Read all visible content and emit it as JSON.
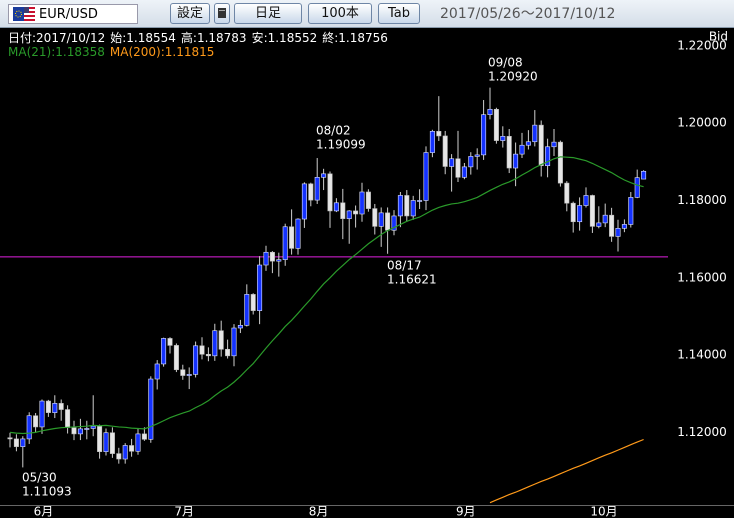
{
  "toolbar": {
    "pair": "EUR/USD",
    "buttons": [
      "設定",
      "日足",
      "100本",
      "Tab"
    ],
    "range": "2017/05/26～2017/10/12"
  },
  "chart_data": {
    "type": "candlestick",
    "info": [
      {
        "label": "日付:",
        "value": "2017/10/12"
      },
      {
        "label": "始:",
        "value": 1.18554
      },
      {
        "label": "高:",
        "value": 1.18783
      },
      {
        "label": "安:",
        "value": 1.18552
      },
      {
        "label": "終:",
        "value": 1.18756
      }
    ],
    "y_label": "Bid",
    "categories": [
      null,
      null,
      null,
      null,
      "6月",
      null,
      null,
      null,
      null,
      null,
      null,
      null,
      null,
      null,
      null,
      null,
      null,
      null,
      null,
      null,
      null,
      null,
      null,
      null,
      null,
      null,
      "7月",
      null,
      null,
      null,
      null,
      null,
      null,
      null,
      null,
      null,
      null,
      null,
      null,
      null,
      null,
      null,
      null,
      null,
      null,
      null,
      null,
      "8月",
      null,
      null,
      null,
      null,
      null,
      null,
      null,
      null,
      null,
      null,
      null,
      null,
      null,
      null,
      null,
      null,
      null,
      null,
      null,
      null,
      null,
      null,
      "9月",
      null,
      null,
      null,
      null,
      null,
      null,
      null,
      null,
      null,
      null,
      null,
      null,
      null,
      null,
      null,
      null,
      null,
      null,
      null,
      null,
      "10月",
      null,
      null,
      null,
      null,
      null,
      null,
      null,
      null
    ],
    "open": [
      1.1186,
      1.1183,
      1.1163,
      1.1183,
      1.1243,
      1.1214,
      1.1281,
      1.1251,
      1.1275,
      1.1259,
      1.1212,
      1.1196,
      1.1209,
      1.121,
      1.1216,
      1.115,
      1.1199,
      1.1145,
      1.1131,
      1.1166,
      1.1151,
      1.1196,
      1.1182,
      1.1338,
      1.1377,
      1.1443,
      1.1425,
      1.1362,
      1.1347,
      1.135,
      1.1424,
      1.1402,
      1.1398,
      1.1463,
      1.1415,
      1.1398,
      1.147,
      1.1477,
      1.1557,
      1.1515,
      1.1633,
      1.1666,
      1.1643,
      1.1647,
      1.1732,
      1.1676,
      1.1752,
      1.1843,
      1.1801,
      1.186,
      1.1869,
      1.1773,
      1.1794,
      1.1753,
      1.1773,
      1.1765,
      1.1822,
      1.1779,
      1.1733,
      1.1768,
      1.1723,
      1.176,
      1.1813,
      1.176,
      1.18,
      1.18,
      1.1924,
      1.1979,
      1.1967,
      1.1888,
      1.1908,
      1.186,
      1.1887,
      1.1914,
      1.1918,
      1.2022,
      1.2036,
      1.1955,
      1.1966,
      1.1884,
      1.192,
      1.1943,
      1.1952,
      1.1995,
      1.189,
      1.1939,
      1.1951,
      1.1845,
      1.1793,
      1.1745,
      1.1787,
      1.1813,
      1.1733,
      1.1742,
      1.1762,
      1.1707,
      1.1728,
      1.1738,
      1.1808,
      1.18554
    ],
    "high": [
      1.1199,
      1.1195,
      1.119,
      1.1252,
      1.125,
      1.1285,
      1.1284,
      1.1296,
      1.1285,
      1.127,
      1.123,
      1.1235,
      1.123,
      1.1296,
      1.122,
      1.121,
      1.1213,
      1.116,
      1.1172,
      1.1183,
      1.121,
      1.1213,
      1.1345,
      1.1387,
      1.1445,
      1.1446,
      1.143,
      1.1375,
      1.1368,
      1.1435,
      1.1446,
      1.142,
      1.1481,
      1.1489,
      1.144,
      1.148,
      1.1491,
      1.1583,
      1.156,
      1.1656,
      1.1683,
      1.1669,
      1.1665,
      1.174,
      1.1777,
      1.1754,
      1.1847,
      1.1846,
      1.19099,
      1.1882,
      1.1875,
      1.1806,
      1.183,
      1.1775,
      1.1787,
      1.1846,
      1.1829,
      1.1791,
      1.1782,
      1.1782,
      1.1775,
      1.1822,
      1.1827,
      1.1812,
      1.1829,
      1.194,
      1.1983,
      1.207,
      1.198,
      1.192,
      1.198,
      1.1897,
      1.1925,
      1.1935,
      1.206,
      1.2092,
      1.204,
      1.1992,
      1.1985,
      1.195,
      1.1975,
      1.1982,
      1.2034,
      1.2007,
      1.196,
      1.1985,
      1.1955,
      1.185,
      1.1797,
      1.1808,
      1.1834,
      1.1815,
      1.1785,
      1.1792,
      1.1781,
      1.175,
      1.1751,
      1.1822,
      1.188,
      1.18783
    ],
    "low": [
      1.1161,
      1.1151,
      1.11093,
      1.117,
      1.12,
      1.1196,
      1.124,
      1.1237,
      1.123,
      1.1197,
      1.118,
      1.118,
      1.1182,
      1.119,
      1.1132,
      1.114,
      1.1134,
      1.1119,
      1.1119,
      1.1137,
      1.1142,
      1.1178,
      1.1173,
      1.1311,
      1.137,
      1.1404,
      1.1356,
      1.1336,
      1.1312,
      1.1342,
      1.1389,
      1.1384,
      1.1385,
      1.1396,
      1.1391,
      1.1371,
      1.1457,
      1.1474,
      1.1505,
      1.148,
      1.1618,
      1.1612,
      1.1603,
      1.1631,
      1.166,
      1.166,
      1.1729,
      1.1785,
      1.1791,
      1.1827,
      1.1729,
      1.177,
      1.17,
      1.1688,
      1.173,
      1.1745,
      1.1771,
      1.1712,
      1.168,
      1.16621,
      1.171,
      1.1731,
      1.1745,
      1.175,
      1.1778,
      1.1775,
      1.1912,
      1.1954,
      1.1868,
      1.1823,
      1.1848,
      1.1855,
      1.1867,
      1.188,
      1.1905,
      1.201,
      1.1947,
      1.1937,
      1.1871,
      1.1837,
      1.191,
      1.1932,
      1.194,
      1.1862,
      1.186,
      1.1915,
      1.1836,
      1.1772,
      1.1717,
      1.1722,
      1.1782,
      1.1716,
      1.1728,
      1.1731,
      1.1693,
      1.1668,
      1.1718,
      1.173,
      1.1806,
      1.18552
    ],
    "close": [
      1.1183,
      1.1163,
      1.1183,
      1.1243,
      1.1214,
      1.1281,
      1.1251,
      1.1275,
      1.1259,
      1.1212,
      1.1196,
      1.1209,
      1.121,
      1.1216,
      1.115,
      1.1199,
      1.1145,
      1.1131,
      1.1166,
      1.1151,
      1.1196,
      1.1182,
      1.1338,
      1.1377,
      1.1443,
      1.1425,
      1.1362,
      1.1347,
      1.135,
      1.1424,
      1.1402,
      1.1398,
      1.1463,
      1.1415,
      1.1398,
      1.147,
      1.1477,
      1.1557,
      1.1515,
      1.1633,
      1.1666,
      1.1643,
      1.1647,
      1.1732,
      1.1676,
      1.1752,
      1.1843,
      1.1801,
      1.186,
      1.1869,
      1.1773,
      1.1794,
      1.1753,
      1.1773,
      1.1765,
      1.1822,
      1.1779,
      1.1733,
      1.1768,
      1.1723,
      1.176,
      1.1813,
      1.176,
      1.18,
      1.18,
      1.1924,
      1.1979,
      1.1967,
      1.1888,
      1.1908,
      1.186,
      1.1887,
      1.1914,
      1.1918,
      1.2022,
      1.2036,
      1.1955,
      1.1966,
      1.1884,
      1.192,
      1.1943,
      1.1952,
      1.1995,
      1.189,
      1.1939,
      1.1951,
      1.1845,
      1.1793,
      1.1745,
      1.1787,
      1.1813,
      1.1733,
      1.1742,
      1.1762,
      1.1707,
      1.1728,
      1.1738,
      1.1808,
      1.1859,
      1.18756
    ],
    "up_color": "#1432ff",
    "down_color": "#e6e6e6",
    "series": [
      {
        "name": "MA(21):",
        "last": 1.18358,
        "color": "#2a9a2a",
        "values": [
          1.12,
          1.1198,
          1.1197,
          1.1198,
          1.12,
          1.1204,
          1.1207,
          1.121,
          1.1212,
          1.1213,
          1.1214,
          1.1215,
          1.1216,
          1.1218,
          1.1217,
          1.1218,
          1.1216,
          1.1214,
          1.1213,
          1.1211,
          1.121,
          1.1209,
          1.1215,
          1.1222,
          1.123,
          1.1238,
          1.1244,
          1.125,
          1.1255,
          1.1264,
          1.1272,
          1.1282,
          1.1295,
          1.1307,
          1.1317,
          1.133,
          1.1345,
          1.1362,
          1.1378,
          1.1398,
          1.1418,
          1.1437,
          1.1455,
          1.1474,
          1.149,
          1.1508,
          1.1527,
          1.1545,
          1.1565,
          1.1584,
          1.16,
          1.1617,
          1.1632,
          1.1647,
          1.166,
          1.1674,
          1.1688,
          1.17,
          1.1712,
          1.1722,
          1.173,
          1.1738,
          1.1746,
          1.1752,
          1.1757,
          1.1766,
          1.1775,
          1.1782,
          1.1787,
          1.1791,
          1.1793,
          1.1797,
          1.1802,
          1.1808,
          1.1817,
          1.1826,
          1.1834,
          1.1842,
          1.1848,
          1.1856,
          1.1866,
          1.1875,
          1.1885,
          1.1893,
          1.19,
          1.1908,
          1.1913,
          1.1912,
          1.1911,
          1.1907,
          1.1903,
          1.1896,
          1.1888,
          1.188,
          1.1872,
          1.1862,
          1.1853,
          1.1846,
          1.184,
          1.18358
        ]
      },
      {
        "name": "MA(200):",
        "last": 1.11815,
        "color": "#ff9a1a",
        "values": [
          null,
          null,
          null,
          null,
          null,
          null,
          null,
          null,
          null,
          null,
          null,
          null,
          null,
          null,
          null,
          null,
          null,
          null,
          null,
          null,
          null,
          null,
          null,
          null,
          null,
          null,
          null,
          null,
          null,
          null,
          null,
          null,
          null,
          null,
          null,
          null,
          null,
          null,
          null,
          null,
          null,
          null,
          null,
          null,
          null,
          null,
          null,
          null,
          null,
          null,
          null,
          null,
          null,
          null,
          null,
          null,
          null,
          null,
          null,
          null,
          null,
          null,
          null,
          null,
          null,
          null,
          null,
          null,
          null,
          null,
          null,
          null,
          null,
          null,
          null,
          1.1018,
          1.1025,
          1.1032,
          1.1039,
          1.1045,
          1.1052,
          1.1059,
          1.1066,
          1.1073,
          1.1079,
          1.1086,
          1.1093,
          1.11,
          1.1107,
          1.1113,
          1.112,
          1.1127,
          1.1134,
          1.1141,
          1.1147,
          1.1154,
          1.1161,
          1.1168,
          1.1175,
          1.11815
        ]
      }
    ],
    "hline": {
      "value": 1.1654,
      "color": "#e020e0"
    },
    "annotations": [
      {
        "date": "05/30",
        "value": 1.11093
      },
      {
        "date": "08/02",
        "value": 1.19099
      },
      {
        "date": "08/17",
        "value": 1.16621
      },
      {
        "date": "09/08",
        "value": {
          "value": 1.2092,
          "label": "1.20920"
        }
      }
    ],
    "ylim": [
      1.1012,
      1.2236
    ],
    "yticks": [
      {
        "value": 1.12,
        "label": "1.12000"
      },
      {
        "value": 1.14,
        "label": "1.14000"
      },
      {
        "value": 1.16,
        "label": "1.16000"
      },
      {
        "value": 1.18,
        "label": "1.18000"
      },
      {
        "value": 1.2,
        "label": "1.20000"
      },
      {
        "value": 1.22,
        "label": "1.22000"
      }
    ]
  }
}
